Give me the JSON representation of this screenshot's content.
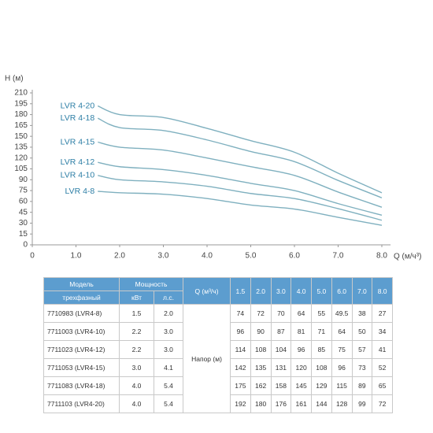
{
  "chart_data": {
    "type": "line",
    "y_label": "H (м)",
    "x_label": "Q (м/ч³)",
    "x": [
      1.5,
      2,
      3,
      4,
      5,
      6,
      7,
      8
    ],
    "xlim": [
      0,
      8.2
    ],
    "xticks": [
      0,
      {
        "value": 1,
        "label": "1.0"
      },
      {
        "value": 2,
        "label": "2.0"
      },
      {
        "value": 3,
        "label": "3.0"
      },
      {
        "value": 4,
        "label": "4.0"
      },
      {
        "value": 5,
        "label": "5.0"
      },
      {
        "value": 6,
        "label": "6.0"
      },
      {
        "value": 7,
        "label": "7.0"
      },
      {
        "value": 8,
        "label": "8.0"
      }
    ],
    "ylim": [
      0,
      210
    ],
    "yticks": [
      0,
      15,
      30,
      45,
      60,
      75,
      90,
      105,
      120,
      135,
      150,
      165,
      180,
      195,
      210
    ],
    "grid": false,
    "series": [
      {
        "name": "LVR 4-8",
        "color": "#7fb0bf",
        "values": [
          74,
          72,
          70,
          64,
          55,
          49.5,
          38,
          27
        ]
      },
      {
        "name": "LVR 4-10",
        "color": "#7fb0bf",
        "values": [
          96,
          90,
          87,
          81,
          71,
          64,
          50,
          34
        ]
      },
      {
        "name": "LVR 4-12",
        "color": "#7fb0bf",
        "values": [
          114,
          108,
          104,
          96,
          85,
          75,
          57,
          41
        ]
      },
      {
        "name": "LVR 4-15",
        "color": "#7fb0bf",
        "values": [
          142,
          135,
          131,
          120,
          108,
          96,
          73,
          52
        ]
      },
      {
        "name": "LVR 4-18",
        "color": "#7fb0bf",
        "values": [
          175,
          162,
          158,
          145,
          129,
          115,
          89,
          65
        ]
      },
      {
        "name": "LVR 4-20",
        "color": "#7fb0bf",
        "values": [
          192,
          180,
          176,
          161,
          144,
          128,
          99,
          72
        ]
      }
    ]
  },
  "table": {
    "header": {
      "model": "Модель",
      "model_sub": "трехфазный",
      "power": "Мощность",
      "kw": "кВт",
      "hp": "л.с.",
      "q": "Q (м³/ч)",
      "head": "Напор (м)"
    },
    "flows": [
      "1.5",
      "2.0",
      "3.0",
      "4.0",
      "5.0",
      "6.0",
      "7.0",
      "8.0"
    ],
    "rows": [
      {
        "model": "7710983 (LVR4-8)",
        "kw": "1.5",
        "hp": "2.0"
      },
      {
        "model": "7711003 (LVR4-10)",
        "kw": "2.2",
        "hp": "3.0"
      },
      {
        "model": "7711023 (LVR4-12)",
        "kw": "2.2",
        "hp": "3.0"
      },
      {
        "model": "7711053 (LVR4-15)",
        "kw": "3.0",
        "hp": "4.1"
      },
      {
        "model": "7711083 (LVR4-18)",
        "kw": "4.0",
        "hp": "5.4"
      },
      {
        "model": "7711103 (LVR4-20)",
        "kw": "4.0",
        "hp": "5.4"
      }
    ]
  }
}
